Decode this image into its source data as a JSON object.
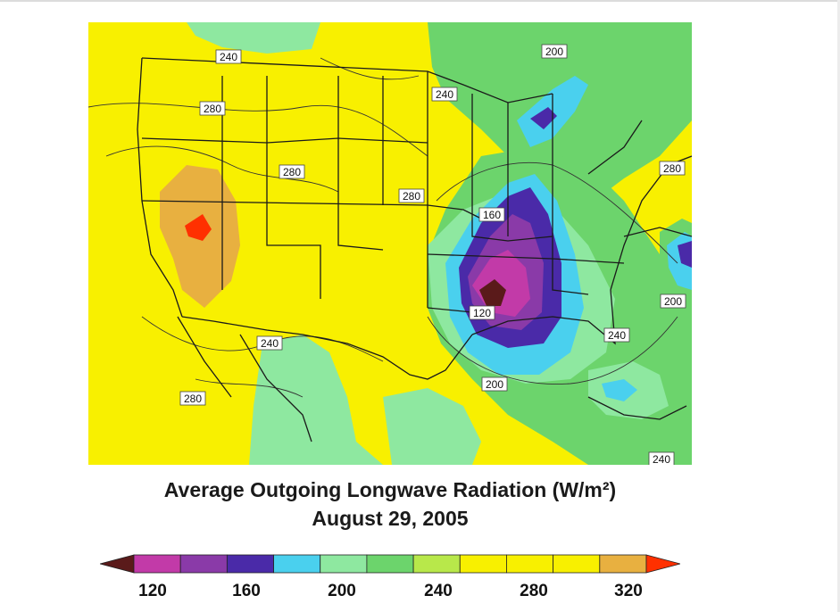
{
  "title": {
    "main": "Average Outgoing Longwave Radiation (W/m²)",
    "date": "August 29, 2005"
  },
  "map": {
    "contour_labels": [
      "240",
      "280",
      "280",
      "280",
      "240",
      "200",
      "280",
      "160",
      "120",
      "200",
      "240",
      "200",
      "240",
      "280",
      "240"
    ],
    "background_color": "#f8f000"
  },
  "colorbar": {
    "tick_labels": [
      "120",
      "160",
      "200",
      "240",
      "280",
      "320"
    ],
    "colors": [
      "#5a1a1a",
      "#c23aa8",
      "#8a3aa8",
      "#4a2aa8",
      "#4ad0ee",
      "#8ee8a0",
      "#6cd46c",
      "#b8e84a",
      "#f8f000",
      "#f8f000",
      "#f8f000",
      "#e8b040",
      "#ff3000"
    ]
  }
}
